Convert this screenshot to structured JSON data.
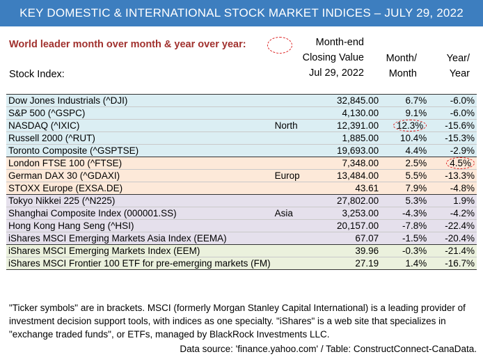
{
  "title": "KEY DOMESTIC & INTERNATIONAL STOCK MARKET INDICES – JULY 29, 2022",
  "subtitle": "World leader month over month & year over year:",
  "headers": {
    "index": "Stock Index:",
    "close_line1": "Month-end",
    "close_line2": "Closing Value",
    "close_line3": "Jul 29, 2022",
    "month_line1": "Month/",
    "month_line2": "Month",
    "year_line1": "Year/",
    "year_line2": "Year"
  },
  "rows": [
    {
      "name": "Dow Jones Industrials (^DJI)",
      "region": "",
      "close": "32,845.00",
      "month": "6.7%",
      "year": "-6.0%",
      "group": "north"
    },
    {
      "name": "S&P 500 (^GSPC)",
      "region": "",
      "close": "4,130.00",
      "month": "9.1%",
      "year": "-6.0%",
      "group": "north"
    },
    {
      "name": "NASDAQ (^IXIC)",
      "region": "North",
      "close": "12,391.00",
      "month": "12.3%",
      "year": "-15.6%",
      "group": "north",
      "leader": "month"
    },
    {
      "name": "Russell  2000 (^RUT)",
      "region": "",
      "close": "1,885.00",
      "month": "10.4%",
      "year": "-15.3%",
      "group": "north"
    },
    {
      "name": "Toronto Composite (^GSPTSE)",
      "region": "",
      "close": "19,693.00",
      "month": "4.4%",
      "year": "-2.9%",
      "group": "north"
    },
    {
      "name": "London FTSE 100 (^FTSE)",
      "region": "",
      "close": "7,348.00",
      "month": "2.5%",
      "year": "4.5%",
      "group": "europe",
      "leader": "year"
    },
    {
      "name": "German DAX 30 (^GDAXI)",
      "region": "Europ",
      "close": "13,484.00",
      "month": "5.5%",
      "year": "-13.3%",
      "group": "europe"
    },
    {
      "name": "STOXX Europe (EXSA.DE)",
      "region": "",
      "close": "43.61",
      "month": "7.9%",
      "year": "-4.8%",
      "group": "europe"
    },
    {
      "name": "Tokyo Nikkei 225 (^N225)",
      "region": "",
      "close": "27,802.00",
      "month": "5.3%",
      "year": "1.9%",
      "group": "asia"
    },
    {
      "name": "Shanghai Composite Index (000001.SS)",
      "region": "Asia",
      "close": "3,253.00",
      "month": "-4.3%",
      "year": "-4.2%",
      "group": "asia"
    },
    {
      "name": "Hong Kong Hang Seng (^HSI)",
      "region": "",
      "close": "20,157.00",
      "month": "-7.8%",
      "year": "-22.4%",
      "group": "asia"
    },
    {
      "name": "iShares MSCI Emerging Markets Asia Index (EEMA)",
      "region": "",
      "close": "67.07",
      "month": "-1.5%",
      "year": "-20.4%",
      "group": "asia"
    },
    {
      "name": "iShares MSCI Emerging Markets Index (EEM)",
      "region": "",
      "close": "39.96",
      "month": "-0.3%",
      "year": "-21.4%",
      "group": "other"
    },
    {
      "name": "iShares MSCI Frontier 100 ETF for pre-emerging markets (FM)",
      "region": "",
      "close": "27.19",
      "month": "1.4%",
      "year": "-16.7%",
      "group": "other"
    }
  ],
  "footnote": "\"Ticker symbols\" are in brackets. MSCI (formerly Morgan Stanley Capital International) is a leading provider of investment decision support tools, with indices as one specialty. \"iShares\" is a web site that specializes in \"exchange traded funds\", or ETFs, managed by BlackRock Investments LLC.",
  "source": "Data source: 'finance.yahoo.com' / Table: ConstructConnect-CanaData.",
  "colors": {
    "title_bar": "#3d7ebf",
    "subtitle": "#a1312e",
    "north_bg": "#dbeef3",
    "europe_bg": "#fde9d9",
    "asia_bg": "#e5e0ec",
    "other_bg": "#ebf1dd",
    "leader_circle": "#dd2222"
  }
}
